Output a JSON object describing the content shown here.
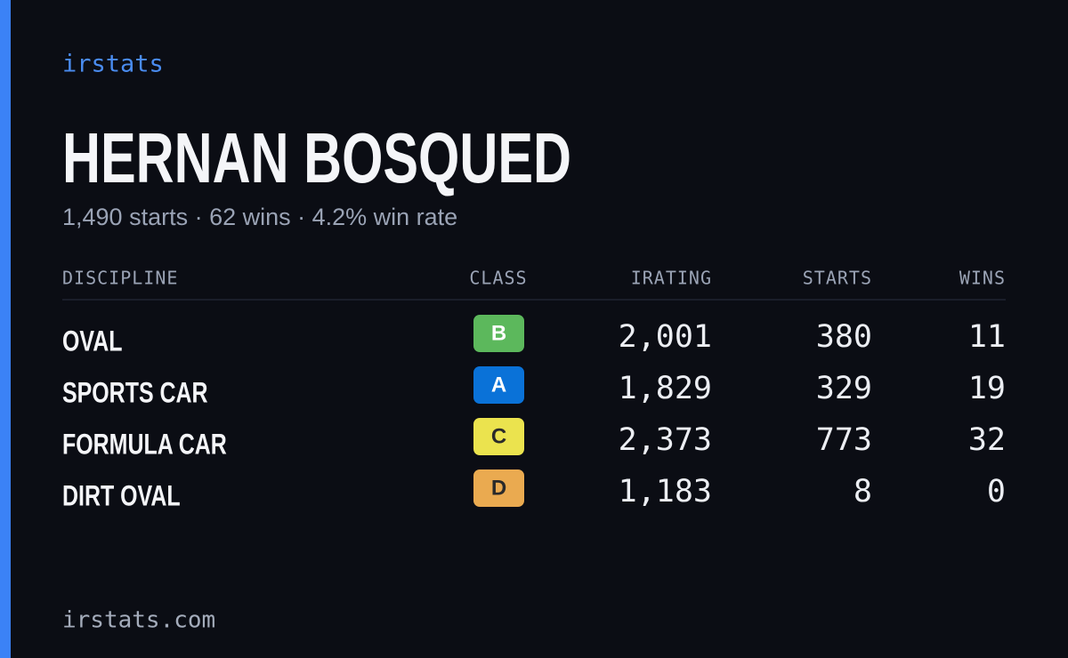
{
  "brand": "irstats",
  "header": {
    "title": "HERNAN BOSQUED",
    "subtitle": "1,490 starts · 62 wins · 4.2% win rate"
  },
  "table": {
    "columns": [
      "DISCIPLINE",
      "CLASS",
      "IRATING",
      "STARTS",
      "WINS"
    ],
    "rows": [
      {
        "discipline": "OVAL",
        "class": "B",
        "class_color": "#5cb85c",
        "irating": "2,001",
        "starts": "380",
        "wins": "11"
      },
      {
        "discipline": "SPORTS CAR",
        "class": "A",
        "class_color": "#0a72d8",
        "irating": "1,829",
        "starts": "329",
        "wins": "19"
      },
      {
        "discipline": "FORMULA CAR",
        "class": "C",
        "class_color": "#ebe34e",
        "irating": "2,373",
        "starts": "773",
        "wins": "32"
      },
      {
        "discipline": "DIRT OVAL",
        "class": "D",
        "class_color": "#eaaa50",
        "irating": "1,183",
        "starts": "8",
        "wins": "0"
      }
    ]
  },
  "footer": "irstats.com"
}
